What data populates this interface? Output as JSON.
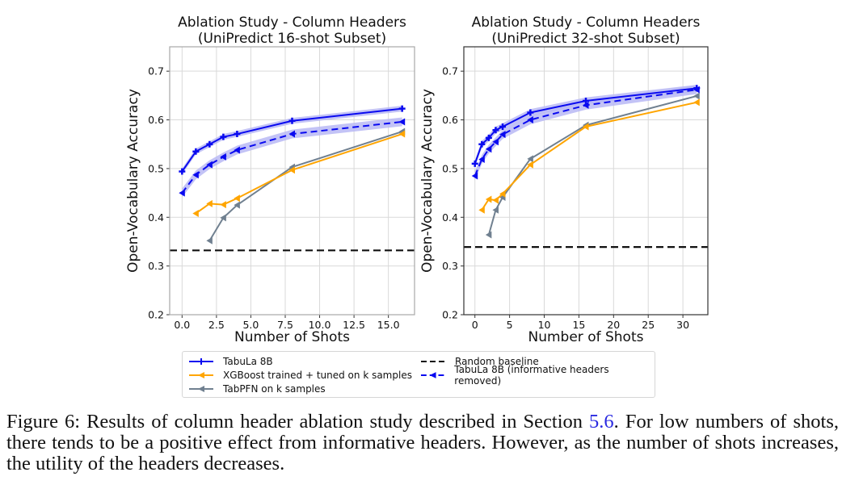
{
  "chart_data": [
    {
      "type": "line",
      "title": "Ablation Study - Column Headers\n(UniPredict 16-shot Subset)",
      "title_lines": [
        "Ablation Study - Column Headers",
        "(UniPredict 16-shot Subset)"
      ],
      "xlabel": "Number of Shots",
      "ylabel": "Open-Vocabulary Accuracy",
      "xlim": [
        -0.9,
        16.9
      ],
      "ylim": [
        0.2,
        0.75
      ],
      "xticks": [
        0,
        2.5,
        5,
        7.5,
        10,
        12.5,
        15
      ],
      "xtick_labels": [
        "0.0",
        "2.5",
        "5.0",
        "7.5",
        "10.0",
        "12.5",
        "15.0"
      ],
      "yticks": [
        0.2,
        0.3,
        0.4,
        0.5,
        0.6,
        0.7
      ],
      "ytick_labels": [
        "0.2",
        "0.3",
        "0.4",
        "0.5",
        "0.6",
        "0.7"
      ],
      "grid": true,
      "series": [
        {
          "name": "TabuLa 8B",
          "x": [
            0,
            1,
            2,
            3,
            4,
            8,
            16
          ],
          "values": [
            0.494,
            0.535,
            0.55,
            0.565,
            0.571,
            0.598,
            0.623
          ],
          "band": 0.006
        },
        {
          "name": "TabuLa 8B (informative headers removed)",
          "x": [
            0,
            1,
            2,
            3,
            4,
            8,
            16
          ],
          "values": [
            0.45,
            0.487,
            0.508,
            0.524,
            0.538,
            0.571,
            0.596
          ],
          "band": 0.009
        },
        {
          "name": "XGBoost trained + tuned on k samples",
          "x": [
            1,
            2,
            3,
            4,
            8,
            16
          ],
          "values": [
            0.408,
            0.428,
            0.426,
            0.439,
            0.497,
            0.571
          ]
        },
        {
          "name": "TabPFN on k samples",
          "x": [
            2,
            3,
            4,
            8,
            16
          ],
          "values": [
            0.352,
            0.399,
            0.425,
            0.503,
            0.576
          ]
        }
      ],
      "baseline": {
        "name": "Random baseline",
        "value": 0.332
      }
    },
    {
      "type": "line",
      "title": "Ablation Study - Column Headers\n(UniPredict 32-shot Subset)",
      "title_lines": [
        "Ablation Study - Column Headers",
        "(UniPredict 32-shot Subset)"
      ],
      "xlabel": "Number of Shots",
      "ylabel": "Open-Vocabulary Accuracy",
      "xlim": [
        -1.6,
        33.6
      ],
      "ylim": [
        0.2,
        0.75
      ],
      "xticks": [
        0,
        5,
        10,
        15,
        20,
        25,
        30
      ],
      "xtick_labels": [
        "0",
        "5",
        "10",
        "15",
        "20",
        "25",
        "30"
      ],
      "yticks": [
        0.2,
        0.3,
        0.4,
        0.5,
        0.6,
        0.7
      ],
      "ytick_labels": [
        "0.2",
        "0.3",
        "0.4",
        "0.5",
        "0.6",
        "0.7"
      ],
      "grid": true,
      "series": [
        {
          "name": "TabuLa 8B",
          "x": [
            0,
            1,
            2,
            3,
            4,
            8,
            16,
            32
          ],
          "values": [
            0.51,
            0.55,
            0.563,
            0.579,
            0.586,
            0.615,
            0.639,
            0.665
          ],
          "band": 0.007
        },
        {
          "name": "TabuLa 8B (informative headers removed)",
          "x": [
            0,
            1,
            2,
            3,
            4,
            8,
            16,
            32
          ],
          "values": [
            0.485,
            0.519,
            0.54,
            0.555,
            0.57,
            0.6,
            0.63,
            0.662
          ],
          "band": 0.009
        },
        {
          "name": "XGBoost trained + tuned on k samples",
          "x": [
            1,
            2,
            3,
            4,
            8,
            16,
            32
          ],
          "values": [
            0.415,
            0.437,
            0.435,
            0.448,
            0.508,
            0.586,
            0.636
          ]
        },
        {
          "name": "TabPFN on k samples",
          "x": [
            2,
            3,
            4,
            8,
            16,
            32
          ],
          "values": [
            0.364,
            0.415,
            0.441,
            0.52,
            0.589,
            0.649
          ]
        }
      ],
      "baseline": {
        "name": "Random baseline",
        "value": 0.339
      }
    }
  ],
  "colors": {
    "tabula": "#0a0af0",
    "tabula_band": "#b8b8f5",
    "xgboost": "#ffa500",
    "tabpfn": "#708090",
    "baseline": "#111111"
  },
  "legend": {
    "items": [
      {
        "label": "TabuLa 8B",
        "style": "solid-plus"
      },
      {
        "label": "XGBoost trained + tuned on k samples",
        "style": "solid-triangle"
      },
      {
        "label": "TabPFN on k samples",
        "style": "solid-triangle"
      },
      {
        "label": "Random baseline",
        "style": "dashed"
      },
      {
        "label": "TabuLa 8B (informative headers removed)",
        "style": "dashed-triangle"
      }
    ]
  },
  "caption": {
    "prefix": "Figure 6: Results of column header ablation study described in Section ",
    "ref": "5.6",
    "suffix": ". For low numbers of shots, there tends to be a positive effect from informative headers. However, as the number of shots increases, the utility of the headers decreases."
  }
}
